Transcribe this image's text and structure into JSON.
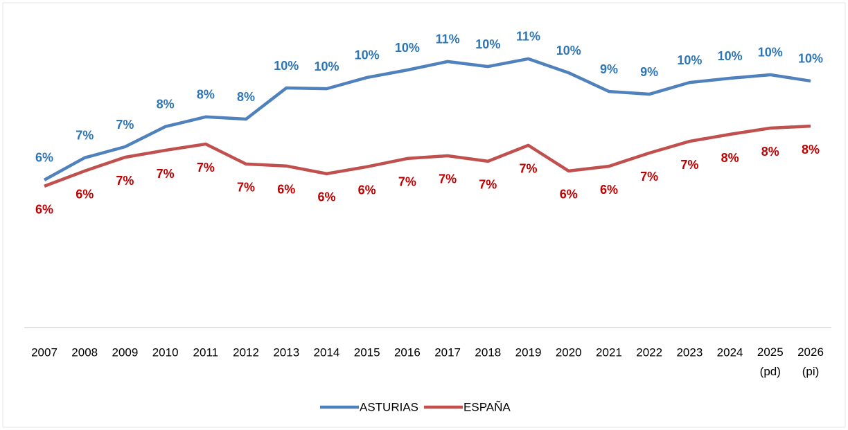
{
  "chart_data": {
    "type": "line",
    "categories": [
      "2007",
      "2008",
      "2009",
      "2010",
      "2011",
      "2012",
      "2013",
      "2014",
      "2015",
      "2016",
      "2017",
      "2018",
      "2019",
      "2020",
      "2021",
      "2022",
      "2023",
      "2024",
      "2025 (pd)",
      "2026 (pi)"
    ],
    "series": [
      {
        "name": "ASTURIAS",
        "color": "#4f81bd",
        "label_color": "#2e75b6",
        "values": [
          5.92,
          6.81,
          7.25,
          8.06,
          8.45,
          8.36,
          9.61,
          9.58,
          10.03,
          10.33,
          10.67,
          10.47,
          10.78,
          10.22,
          9.47,
          9.36,
          9.83,
          10.0,
          10.14,
          9.89
        ],
        "value_labels": [
          "6%",
          "7%",
          "7%",
          "8%",
          "8%",
          "8%",
          "10%",
          "10%",
          "10%",
          "10%",
          "11%",
          "10%",
          "11%",
          "10%",
          "9%",
          "9%",
          "10%",
          "10%",
          "10%",
          "10%"
        ]
      },
      {
        "name": "ESPAÑA",
        "color": "#c0504d",
        "label_color": "#c00000",
        "values": [
          5.67,
          6.28,
          6.83,
          7.11,
          7.36,
          6.56,
          6.48,
          6.17,
          6.45,
          6.78,
          6.89,
          6.67,
          7.31,
          6.28,
          6.47,
          7.0,
          7.47,
          7.75,
          8.0,
          8.08
        ],
        "value_labels": [
          "6%",
          "6%",
          "7%",
          "7%",
          "7%",
          "7%",
          "6%",
          "6%",
          "6%",
          "7%",
          "7%",
          "7%",
          "7%",
          "6%",
          "6%",
          "7%",
          "7%",
          "8%",
          "8%",
          "8%"
        ]
      }
    ],
    "ylim": [
      0,
      13
    ],
    "legend": "bottom"
  }
}
